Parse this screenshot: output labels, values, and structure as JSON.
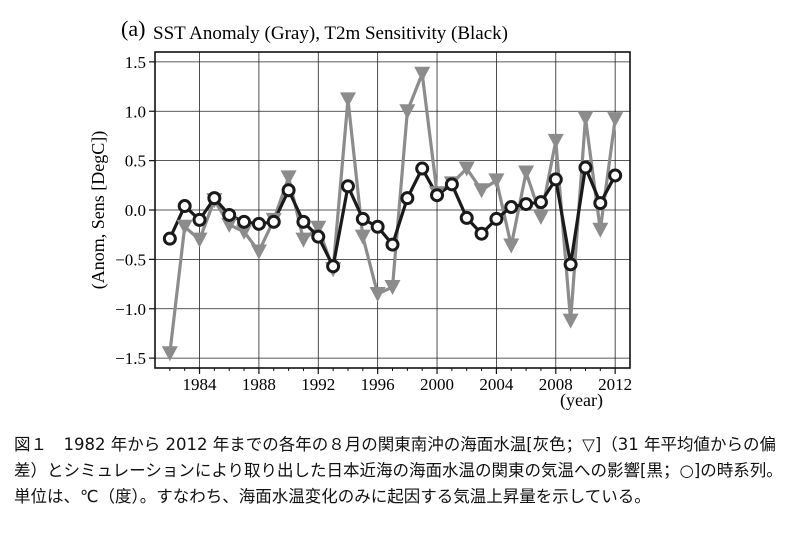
{
  "chart_data": {
    "type": "line",
    "panel_label": "(a)",
    "title": "SST Anomaly (Gray), T2m Sensitivity (Black)",
    "xlabel": "(year)",
    "ylabel": "(Anom, Sens [DegC])",
    "xlim": [
      1981,
      2013
    ],
    "ylim": [
      -1.6,
      1.6
    ],
    "xticks": [
      1984,
      1988,
      1992,
      1996,
      2000,
      2004,
      2008,
      2012
    ],
    "yticks": [
      -1.5,
      -1.0,
      -0.5,
      0.0,
      0.5,
      1.0,
      1.5
    ],
    "ytick_labels": [
      "−1.5",
      "−1.0",
      "−0.5",
      "0.0",
      "0.5",
      "1.0",
      "1.5"
    ],
    "grid": true,
    "x": [
      1982,
      1983,
      1984,
      1985,
      1986,
      1987,
      1988,
      1989,
      1990,
      1991,
      1992,
      1993,
      1994,
      1995,
      1996,
      1997,
      1998,
      1999,
      2000,
      2001,
      2002,
      2003,
      2004,
      2005,
      2006,
      2007,
      2008,
      2009,
      2010,
      2011,
      2012
    ],
    "series": [
      {
        "name": "SST Anomaly (Gray)",
        "color": "#8c8c8c",
        "marker": "triangle-down",
        "values": [
          -1.45,
          -0.17,
          -0.3,
          0.1,
          -0.15,
          -0.22,
          -0.42,
          -0.1,
          0.33,
          -0.3,
          -0.18,
          -0.6,
          1.12,
          -0.27,
          -0.85,
          -0.78,
          1.0,
          1.38,
          0.17,
          0.27,
          0.42,
          0.2,
          0.3,
          -0.36,
          0.38,
          -0.07,
          0.7,
          -1.12,
          0.93,
          -0.2,
          0.92
        ]
      },
      {
        "name": "T2m Sensitivity (Black)",
        "color": "#1a1a1a",
        "marker": "circle",
        "values": [
          -0.29,
          0.04,
          -0.1,
          0.12,
          -0.05,
          -0.12,
          -0.14,
          -0.12,
          0.2,
          -0.12,
          -0.27,
          -0.57,
          0.24,
          -0.09,
          -0.17,
          -0.35,
          0.12,
          0.42,
          0.15,
          0.26,
          -0.08,
          -0.24,
          -0.09,
          0.03,
          0.06,
          0.08,
          0.31,
          -0.55,
          0.43,
          0.07,
          0.35
        ]
      }
    ]
  },
  "caption": {
    "text": "図１　1982 年から 2012 年までの各年の８月の関東南沖の海面水温[灰色；▽]（31 年平均値からの偏差）とシミュレーションにより取り出した日本近海の海面水温の関東の気温への影響[黒；○]の時系列。単位は、℃（度）。すなわち、海面水温変化のみに起因する気温上昇量を示している。"
  }
}
